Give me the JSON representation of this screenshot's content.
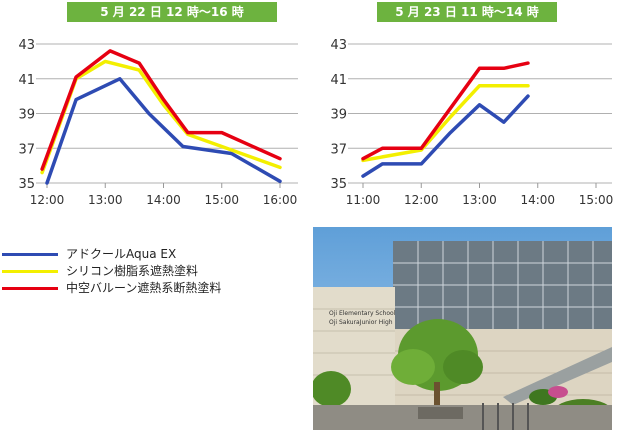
{
  "colors": {
    "series_blue": "#2e4bb3",
    "series_yellow": "#f3ef00",
    "series_red": "#e60012",
    "banner": "#6db33f",
    "grid": "#b0b0b0"
  },
  "chart_data": [
    {
      "type": "line",
      "title": "5 月 22 日 12 時〜16 時",
      "x_ticks": [
        "12:00",
        "13:00",
        "14:00",
        "15:00",
        "16:00"
      ],
      "y_ticks": [
        "35",
        "37",
        "39",
        "41",
        "43"
      ],
      "ylim": [
        35,
        43
      ],
      "xlim": [
        "12:00",
        "16:00"
      ],
      "grid": true,
      "series": [
        {
          "name": "アドクールAqua EX",
          "color": "#2e4bb3",
          "x": [
            "12:00",
            "12:30",
            "13:15",
            "13:45",
            "14:20",
            "15:10",
            "16:00"
          ],
          "values": [
            35.0,
            39.8,
            41.0,
            39.0,
            37.1,
            36.7,
            35.1
          ]
        },
        {
          "name": "シリコン樹脂系遮熱塗料",
          "color": "#f3ef00",
          "x": [
            "11:55",
            "12:30",
            "13:00",
            "13:35",
            "14:00",
            "14:25",
            "15:00",
            "16:00"
          ],
          "values": [
            35.6,
            41.0,
            42.0,
            41.5,
            39.5,
            37.8,
            37.1,
            35.9
          ]
        },
        {
          "name": "中空バルーン遮熱系断熱塗料",
          "color": "#e60012",
          "x": [
            "11:55",
            "12:30",
            "13:05",
            "13:35",
            "14:00",
            "14:25",
            "15:00",
            "16:00"
          ],
          "values": [
            35.8,
            41.1,
            42.6,
            41.9,
            39.8,
            37.9,
            37.9,
            36.4
          ]
        }
      ]
    },
    {
      "type": "line",
      "title": "5 月 23 日 11 時〜14 時",
      "x_ticks": [
        "11:00",
        "12:00",
        "13:00",
        "14:00",
        "15:00"
      ],
      "y_ticks": [
        "35",
        "37",
        "39",
        "41",
        "43"
      ],
      "ylim": [
        35,
        43
      ],
      "xlim": [
        "11:00",
        "15:00"
      ],
      "grid": true,
      "series": [
        {
          "name": "アドクールAqua EX",
          "color": "#2e4bb3",
          "x": [
            "11:00",
            "11:20",
            "12:00",
            "12:30",
            "13:00",
            "13:25",
            "13:50"
          ],
          "values": [
            35.4,
            36.1,
            36.1,
            37.9,
            39.5,
            38.5,
            40.0
          ]
        },
        {
          "name": "シリコン樹脂系遮熱塗料",
          "color": "#f3ef00",
          "x": [
            "11:00",
            "11:20",
            "12:00",
            "12:30",
            "13:00",
            "13:25",
            "13:50"
          ],
          "values": [
            36.3,
            36.5,
            36.9,
            38.8,
            40.6,
            40.6,
            40.6
          ]
        },
        {
          "name": "中空バルーン遮熱系断熱塗料",
          "color": "#e60012",
          "x": [
            "11:00",
            "11:20",
            "12:00",
            "12:30",
            "13:00",
            "13:25",
            "13:50"
          ],
          "values": [
            36.4,
            37.0,
            37.0,
            39.3,
            41.6,
            41.6,
            41.9
          ]
        }
      ]
    }
  ],
  "legend": [
    {
      "label": "アドクールAqua EX",
      "color": "#2e4bb3"
    },
    {
      "label": "シリコン樹脂系遮熱塗料",
      "color": "#f3ef00"
    },
    {
      "label": "中空バルーン遮熱系断熱塗料",
      "color": "#e60012"
    }
  ],
  "photo": {
    "sign_line1": "Oji Elementary School",
    "sign_line2": "Oji SakuraJunior High"
  }
}
